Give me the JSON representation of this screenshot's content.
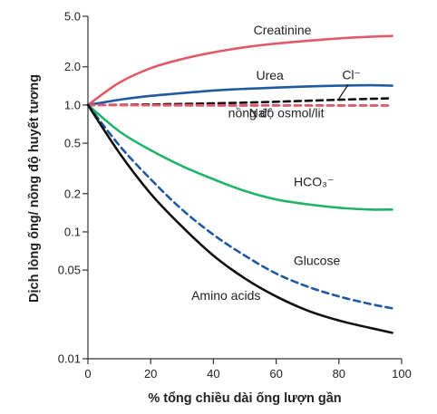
{
  "chart_data": {
    "type": "line",
    "title": "",
    "xlabel": "% tổng chiều dài ống lượn gần",
    "ylabel": "Dịch lòng ống/ nồng độ huyết tương",
    "xlim": [
      0,
      100
    ],
    "ylim": [
      0.01,
      5.0
    ],
    "yscale": "log",
    "grid": false,
    "x_ticks": [
      0,
      20,
      40,
      60,
      80,
      100
    ],
    "x_tick_labels": [
      "0",
      "20",
      "40",
      "60",
      "80",
      "100"
    ],
    "y_ticks": [
      0.01,
      0.05,
      0.1,
      0.2,
      0.5,
      1.0,
      2.0,
      5.0
    ],
    "y_tick_labels": [
      "0.01",
      "0.05",
      "0.1",
      "0.2",
      "0.5",
      "1.0",
      "2.0",
      "5.0"
    ],
    "series": [
      {
        "name": "Creatinine",
        "color": "#e05a6a",
        "dash": "solid",
        "x": [
          0,
          10,
          20,
          30,
          40,
          50,
          60,
          70,
          80,
          90,
          97
        ],
        "y": [
          1.0,
          1.5,
          1.95,
          2.3,
          2.6,
          2.85,
          3.05,
          3.2,
          3.35,
          3.45,
          3.5
        ]
      },
      {
        "name": "Urea",
        "color": "#1f5aa0",
        "dash": "solid",
        "x": [
          0,
          10,
          20,
          30,
          40,
          50,
          60,
          70,
          80,
          90,
          97
        ],
        "y": [
          1.0,
          1.1,
          1.18,
          1.24,
          1.3,
          1.34,
          1.37,
          1.4,
          1.42,
          1.43,
          1.42
        ]
      },
      {
        "name": "Cl⁻",
        "color": "#111111",
        "dash": "dashed",
        "x": [
          0,
          20,
          40,
          60,
          80,
          97
        ],
        "y": [
          1.0,
          1.01,
          1.03,
          1.06,
          1.1,
          1.13
        ]
      },
      {
        "name": "Na⁺",
        "color": "#e05a6a",
        "dash": "dashed",
        "x": [
          0,
          20,
          40,
          60,
          80,
          97
        ],
        "y": [
          1.0,
          0.995,
          0.99,
          0.99,
          0.99,
          0.99
        ]
      },
      {
        "name": "nồng độ osmol/lit",
        "color": "#e05a6a",
        "dash": "dashed",
        "x": [
          0,
          97
        ],
        "y": [
          1.0,
          0.99
        ]
      },
      {
        "name": "HCO₃⁻",
        "color": "#22b36b",
        "dash": "solid",
        "x": [
          0,
          10,
          20,
          30,
          40,
          50,
          60,
          70,
          80,
          90,
          97
        ],
        "y": [
          1.0,
          0.62,
          0.44,
          0.33,
          0.26,
          0.21,
          0.18,
          0.165,
          0.155,
          0.15,
          0.15
        ]
      },
      {
        "name": "Glucose",
        "color": "#1f5aa0",
        "dash": "dashed",
        "x": [
          0,
          10,
          20,
          30,
          40,
          50,
          60,
          70,
          80,
          90,
          97
        ],
        "y": [
          1.0,
          0.48,
          0.26,
          0.15,
          0.095,
          0.065,
          0.047,
          0.037,
          0.031,
          0.027,
          0.025
        ]
      },
      {
        "name": "Amino acids",
        "color": "#111111",
        "dash": "solid",
        "x": [
          0,
          10,
          20,
          30,
          40,
          50,
          60,
          70,
          80,
          90,
          97
        ],
        "y": [
          1.0,
          0.42,
          0.2,
          0.11,
          0.065,
          0.043,
          0.031,
          0.024,
          0.02,
          0.0175,
          0.016
        ]
      }
    ],
    "annotations": [
      {
        "id": "creatinine",
        "text": "Creatinine",
        "x": 62,
        "y": 3.6
      },
      {
        "id": "urea",
        "text": "Urea",
        "x": 58,
        "y": 1.58
      },
      {
        "id": "cl",
        "text": "Cl⁻",
        "x": 84,
        "y": 1.6
      },
      {
        "id": "na",
        "text": "Na⁺",
        "x": 55,
        "y": 0.8
      },
      {
        "id": "osmol",
        "text": "nồng độ osmol/lit",
        "x": 60,
        "y": 0.8
      },
      {
        "id": "hco3",
        "text": "HCO₃⁻",
        "x": 72,
        "y": 0.23
      },
      {
        "id": "glucose",
        "text": "Glucose",
        "x": 73,
        "y": 0.055
      },
      {
        "id": "amino",
        "text": "Amino acids",
        "x": 44,
        "y": 0.029
      }
    ]
  }
}
